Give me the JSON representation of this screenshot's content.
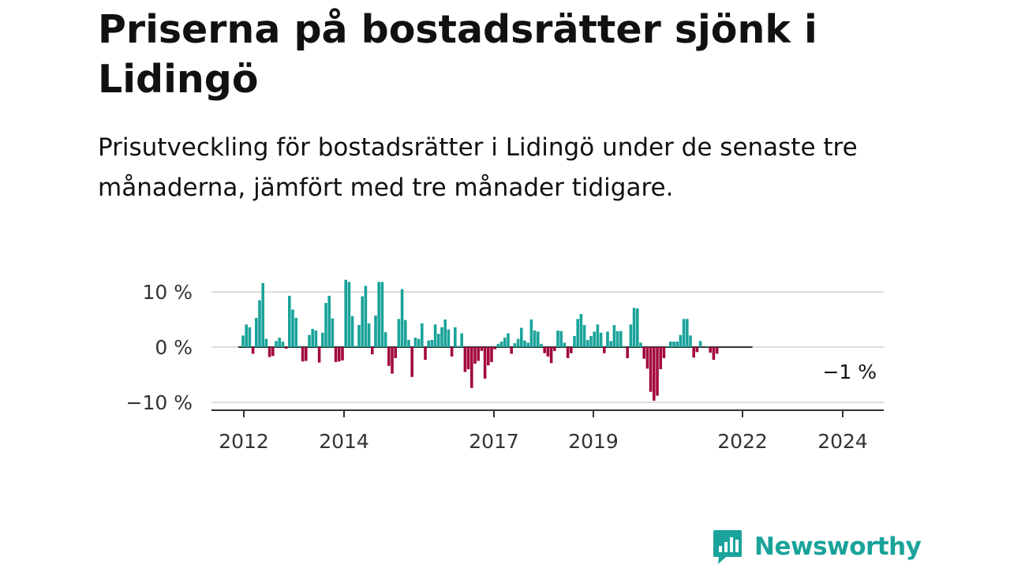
{
  "header": {
    "title": "Priserna på bostadsrätter sjönk i Lidingö",
    "subtitle": "Prisutveckling för bostadsrätter i Lidingö under de senaste tre månaderna, jämfört med tre månader tidigare."
  },
  "colors": {
    "positive": "#1aa39a",
    "negative": "#a3093f",
    "grid": "#dddddd",
    "axis": "#333333",
    "brand": "#1aa39a"
  },
  "brand": {
    "name": "Newsworthy",
    "icon": "newsworthy-logo-icon"
  },
  "chart_data": {
    "type": "bar",
    "title": "Priserna på bostadsrätter sjönk i Lidingö",
    "ylim": [
      -12,
      12
    ],
    "y_ticks": [
      {
        "value": 10,
        "label": "10 %"
      },
      {
        "value": 0,
        "label": "0 %"
      },
      {
        "value": -10,
        "label": "−10 %"
      }
    ],
    "x_ticks": [
      "2012",
      "2014",
      "2017",
      "2019",
      "2022",
      "2024"
    ],
    "grid": true,
    "end_label": "−1 %",
    "series": [
      {
        "values": [
          2.1,
          4.1,
          3.6,
          -1.2,
          5.3,
          8.5,
          11.6,
          1.5,
          -1.8,
          -1.6,
          1.1,
          1.7,
          1.0,
          -0.3,
          9.3,
          6.8,
          5.3,
          0.2,
          -2.6,
          -2.5,
          2.2,
          3.3,
          3.0,
          -2.8,
          2.6,
          8.0,
          9.3,
          5.2,
          -2.7,
          -2.6,
          -2.4,
          12.2,
          11.8,
          5.6,
          0.2,
          4.0,
          9.2,
          11.1,
          4.3,
          -1.3,
          5.7,
          11.8,
          11.8,
          2.7,
          -3.4,
          -4.8,
          -2.0,
          5.1,
          10.5,
          4.9,
          1.3,
          -5.4,
          1.7,
          1.5,
          4.3,
          -2.3,
          1.2,
          1.3,
          4.1,
          2.4,
          3.6,
          5.0,
          3.2,
          -1.7,
          3.6,
          0.2,
          2.5,
          -4.5,
          -4.0,
          -7.4,
          -3.0,
          -2.5,
          -0.7,
          -5.7,
          -3.3,
          -2.7,
          -0.4,
          0.6,
          1.0,
          1.7,
          2.5,
          -1.2,
          0.7,
          1.5,
          3.5,
          1.2,
          0.8,
          5.0,
          3.0,
          2.8,
          0.6,
          -1.1,
          -1.7,
          -2.9,
          -0.7,
          3.0,
          2.9,
          0.8,
          -2.0,
          -1.1,
          2.0,
          5.1,
          6.0,
          4.0,
          1.3,
          2.0,
          2.8,
          4.1,
          2.6,
          -1.1,
          2.8,
          1.1,
          4.0,
          2.9,
          2.9,
          0.1,
          -2.0,
          4.1,
          7.1,
          7.0,
          0.8,
          -2.1,
          -3.9,
          -8.1,
          -9.7,
          -8.8,
          -4.0,
          -2.0,
          0.1,
          1.0,
          1.0,
          1.0,
          2.2,
          5.1,
          5.1,
          2.1,
          -1.9,
          -0.9,
          1.1,
          -0.1,
          0.1,
          -1.0,
          -2.3,
          -1.2
        ]
      }
    ]
  }
}
